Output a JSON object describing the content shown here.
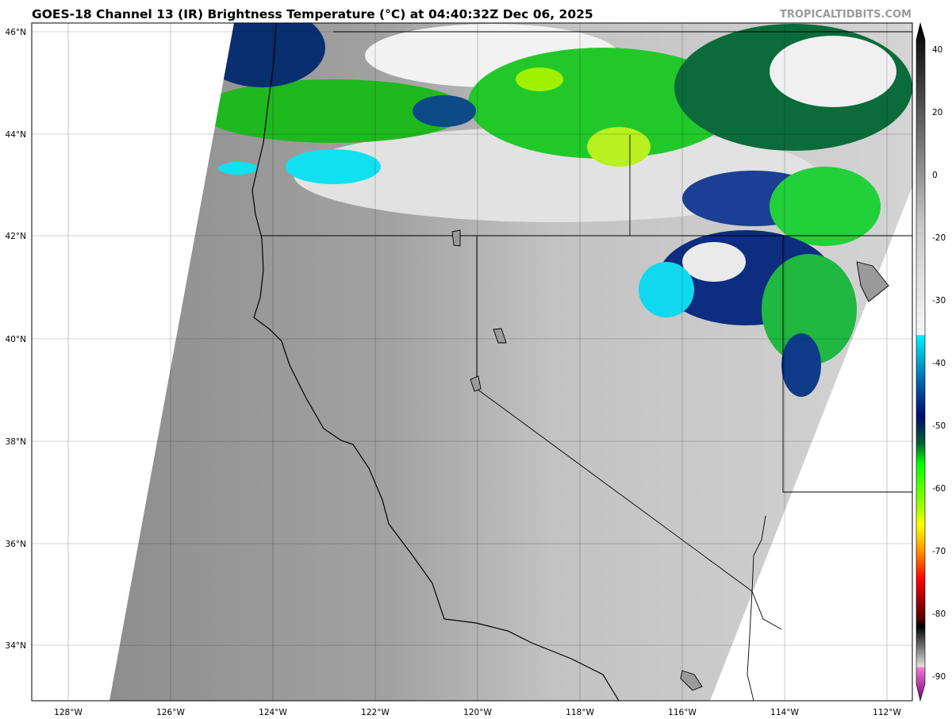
{
  "title": "GOES-18 Channel 13 (IR) Brightness Temperature (°C) at 04:40:32Z Dec 06, 2025",
  "watermark": "TROPICALTIDBITS.COM",
  "map": {
    "region": "US West Coast (California, Nevada, Oregon)",
    "lat_labels": [
      "46°N",
      "44°N",
      "42°N",
      "40°N",
      "38°N",
      "36°N",
      "34°N"
    ],
    "lon_labels": [
      "128°W",
      "126°W",
      "124°W",
      "122°W",
      "120°W",
      "118°W",
      "116°W",
      "114°W",
      "112°W"
    ],
    "lat_values": [
      46,
      44,
      42,
      40,
      38,
      36,
      34
    ],
    "lon_values": [
      -128,
      -126,
      -124,
      -122,
      -120,
      -118,
      -116,
      -114,
      -112
    ]
  },
  "colorbar": {
    "units": "°C",
    "range": [
      -90,
      40
    ],
    "ticks": [
      "40",
      "20",
      "0",
      "-20",
      "-30",
      "-40",
      "-50",
      "-60",
      "-70",
      "-80",
      "-90"
    ],
    "tick_values": [
      40,
      20,
      0,
      -20,
      -30,
      -40,
      -50,
      -60,
      -70,
      -80,
      -90
    ],
    "colors": {
      "warm": "#000000",
      "neutral": "#ffffff",
      "cyan": "#00e5ff",
      "navy": "#000a6e",
      "green": "#00ff00",
      "yellow": "#ffff00",
      "orange": "#ff8c00",
      "red": "#ff0000",
      "pink": "#f07ad0",
      "purple": "#7a0078"
    }
  }
}
